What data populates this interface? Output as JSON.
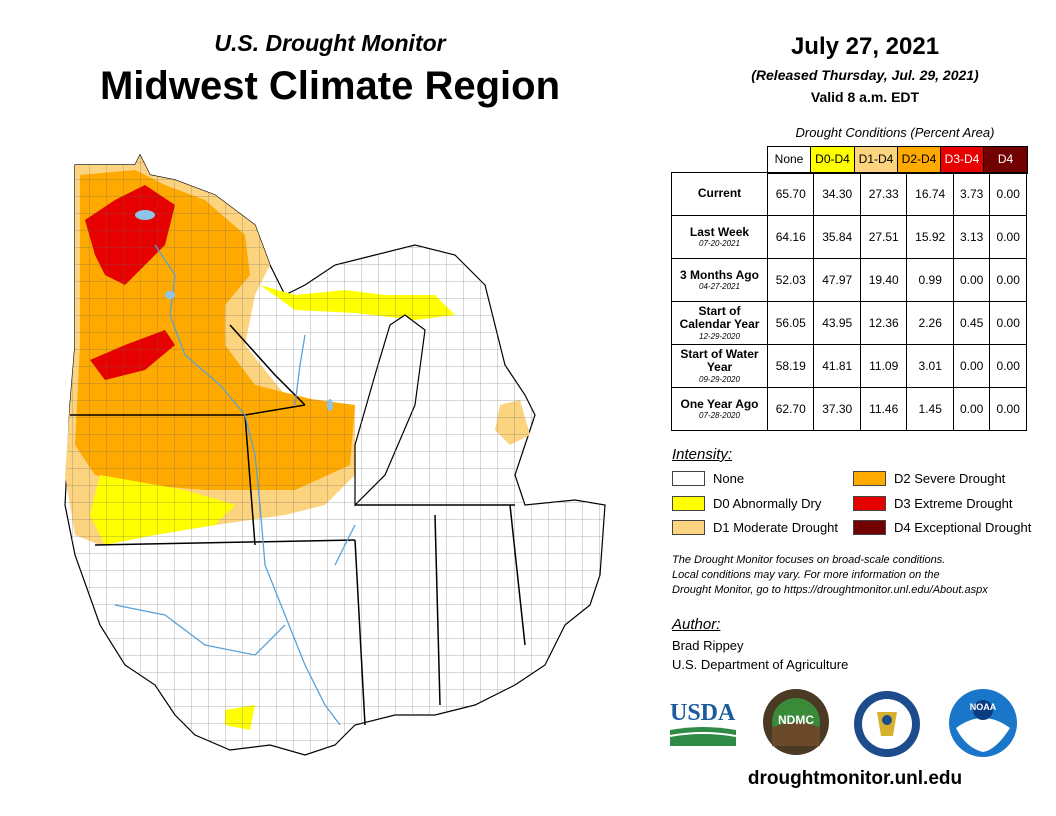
{
  "header": {
    "subtitle": "U.S. Drought Monitor",
    "title": "Midwest Climate Region",
    "date": "July 27, 2021",
    "released": "(Released Thursday, Jul. 29, 2021)",
    "valid": "Valid 8 a.m. EDT"
  },
  "table": {
    "caption": "Drought Conditions (Percent Area)",
    "columns": [
      "None",
      "D0-D4",
      "D1-D4",
      "D2-D4",
      "D3-D4",
      "D4"
    ],
    "column_colors": [
      "#ffffff",
      "#ffff00",
      "#fcd37f",
      "#ffaa00",
      "#e60000",
      "#730000"
    ],
    "rows": [
      {
        "label": "Current",
        "date": "",
        "values": [
          "65.70",
          "34.30",
          "27.33",
          "16.74",
          "3.73",
          "0.00"
        ]
      },
      {
        "label": "Last Week",
        "date": "07-20-2021",
        "values": [
          "64.16",
          "35.84",
          "27.51",
          "15.92",
          "3.13",
          "0.00"
        ]
      },
      {
        "label": "3 Months Ago",
        "date": "04-27-2021",
        "values": [
          "52.03",
          "47.97",
          "19.40",
          "0.99",
          "0.00",
          "0.00"
        ]
      },
      {
        "label": "Start of Calendar Year",
        "date": "12-29-2020",
        "values": [
          "56.05",
          "43.95",
          "12.36",
          "2.26",
          "0.45",
          "0.00"
        ]
      },
      {
        "label": "Start of Water Year",
        "date": "09-29-2020",
        "values": [
          "58.19",
          "41.81",
          "11.09",
          "3.01",
          "0.00",
          "0.00"
        ]
      },
      {
        "label": "One Year Ago",
        "date": "07-28-2020",
        "values": [
          "62.70",
          "37.30",
          "11.46",
          "1.45",
          "0.00",
          "0.00"
        ]
      }
    ]
  },
  "legend": {
    "title": "Intensity:",
    "items": [
      {
        "label": "None",
        "color": "#ffffff"
      },
      {
        "label": "D0 Abnormally Dry",
        "color": "#ffff00"
      },
      {
        "label": "D1 Moderate Drought",
        "color": "#fcd37f"
      },
      {
        "label": "D2 Severe Drought",
        "color": "#ffaa00"
      },
      {
        "label": "D3 Extreme Drought",
        "color": "#e60000"
      },
      {
        "label": "D4 Exceptional Drought",
        "color": "#730000"
      }
    ]
  },
  "note": {
    "line1": "The Drought Monitor focuses on broad-scale conditions.",
    "line2": "Local conditions may vary. For more information on the",
    "line3": "Drought Monitor, go to https://droughtmonitor.unl.edu/About.aspx"
  },
  "author": {
    "title": "Author:",
    "name": "Brad Rippey",
    "org": "U.S. Department of Agriculture"
  },
  "logos": {
    "usda": "USDA",
    "ndmc": "NDMC",
    "noaa": "NOAA"
  },
  "url": "droughtmonitor.unl.edu",
  "colors": {
    "water": "#8fc3ea",
    "border": "#000000"
  }
}
